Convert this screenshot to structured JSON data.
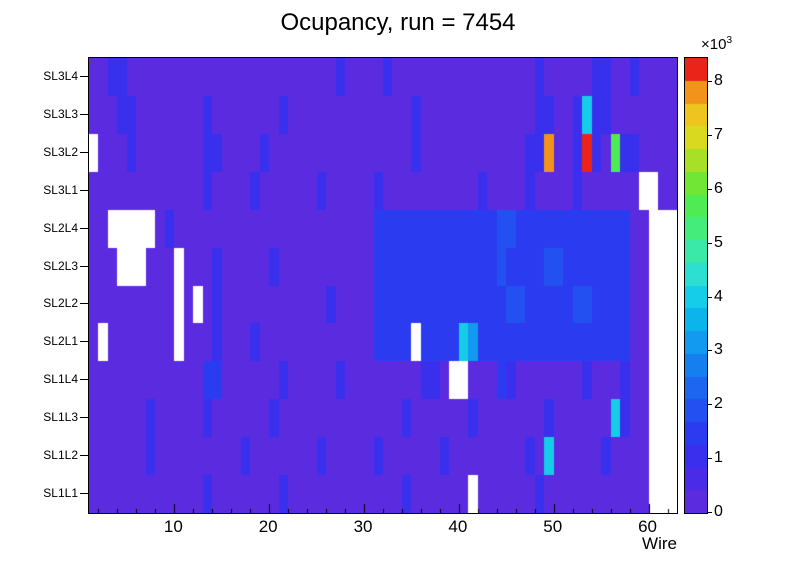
{
  "title": "Ocupancy, run = 7454",
  "axes": {
    "x_label": "Wire",
    "x_ticks": [
      10,
      20,
      30,
      40,
      50,
      60
    ],
    "y_labels_top_to_bottom": [
      "SL3L4",
      "SL3L3",
      "SL3L2",
      "SL3L1",
      "SL2L4",
      "SL2L3",
      "SL2L2",
      "SL2L1",
      "SL1L4",
      "SL1L3",
      "SL1L2",
      "SL1L1"
    ],
    "z_ticks": [
      0,
      1,
      2,
      3,
      4,
      5,
      6,
      7,
      8
    ],
    "z_scale": {
      "mantissa": "×10",
      "exponent": "3"
    }
  },
  "chart_data": {
    "type": "heatmap",
    "title": "Ocupancy, run = 7454",
    "xlabel": "Wire",
    "x_bin_range": [
      1,
      62
    ],
    "z_unit": "counts ×10^3",
    "z_max": 8.45,
    "empty_bin_color": "#ffffff",
    "palette_low_to_high": [
      "#5b2be0",
      "#4a2be8",
      "#3930ee",
      "#2b3cf0",
      "#2350f0",
      "#1c66f0",
      "#167ff0",
      "#119af0",
      "#0cb4ec",
      "#15cde8",
      "#2ddfd0",
      "#3ae8a8",
      "#44ec7c",
      "#4eec52",
      "#72e635",
      "#a8e028",
      "#d9da20",
      "#eec41e",
      "#f2941c",
      "#ea2418"
    ],
    "rows_top_to_bottom": [
      "SL3L4",
      "SL3L3",
      "SL3L2",
      "SL3L1",
      "SL2L4",
      "SL2L3",
      "SL2L2",
      "SL2L1",
      "SL1L4",
      "SL1L3",
      "SL1L2",
      "SL1L1"
    ],
    "values_top_to_bottom": [
      [
        0.4,
        0.4,
        1,
        1,
        0.4,
        0.4,
        0.4,
        0.4,
        0.4,
        0.4,
        0.4,
        0.4,
        0.4,
        0.4,
        0.4,
        0.4,
        0.4,
        0.4,
        0.4,
        0.4,
        0.4,
        0.4,
        0.4,
        0.4,
        0.4,
        0.4,
        1,
        0.4,
        0.4,
        0.4,
        0.4,
        1,
        0.4,
        0.4,
        0.4,
        0.4,
        0.4,
        0.4,
        0.4,
        0.4,
        0.4,
        0.4,
        0.4,
        0.4,
        0.4,
        0.4,
        0.4,
        1,
        0.4,
        0.4,
        0.4,
        0.4,
        0.4,
        1,
        1,
        0.4,
        0.4,
        1,
        0.4,
        0.4,
        0.4,
        0.4
      ],
      [
        0.4,
        0.4,
        0.4,
        1,
        1,
        0.4,
        0.4,
        0.4,
        0.4,
        0.4,
        0.4,
        0.4,
        1,
        0.4,
        0.4,
        0.4,
        0.4,
        0.4,
        0.4,
        0.4,
        1,
        0.4,
        0.4,
        0.4,
        0.4,
        0.4,
        0.4,
        0.4,
        0.4,
        0.4,
        0.4,
        0.4,
        0.4,
        0.4,
        1,
        0.4,
        0.4,
        0.4,
        0.4,
        0.4,
        0.4,
        0.4,
        0.4,
        0.4,
        0.4,
        0.4,
        0.4,
        1,
        1,
        0.4,
        0.4,
        1,
        4.2,
        1,
        1,
        0.4,
        0.4,
        0.4,
        0.4,
        0.4,
        0.4,
        0.4
      ],
      [
        0,
        0.4,
        0.4,
        0.4,
        1,
        0.4,
        0.4,
        0.4,
        0.4,
        0.4,
        0.4,
        0.4,
        1,
        1,
        0.4,
        0.4,
        0.4,
        0.4,
        1,
        0.4,
        0.4,
        0.4,
        0.4,
        0.4,
        0.4,
        0.4,
        0.4,
        0.4,
        0.4,
        0.4,
        0.4,
        0.4,
        0.4,
        0.4,
        1,
        0.4,
        0.4,
        0.4,
        0.4,
        0.4,
        0.4,
        0.4,
        0.4,
        0.4,
        0.4,
        0.4,
        1,
        1,
        8,
        0.4,
        0.4,
        1,
        8.4,
        1,
        0.4,
        5.8,
        1,
        1,
        0.4,
        0.4,
        0.4,
        0.4
      ],
      [
        0.4,
        0.4,
        0.4,
        0.4,
        0.4,
        0.4,
        0.4,
        0.4,
        0.4,
        0.4,
        0.4,
        0.4,
        1,
        0.4,
        0.4,
        0.4,
        0.4,
        1,
        0.4,
        0.4,
        0.4,
        0.4,
        0.4,
        0.4,
        1,
        0.4,
        0.4,
        0.4,
        0.4,
        0.4,
        1,
        0.4,
        0.4,
        0.4,
        0.4,
        0.4,
        0.4,
        0.4,
        0.4,
        0.4,
        0.4,
        1,
        0.4,
        0.4,
        0.4,
        0.4,
        1,
        0.4,
        0.4,
        0.4,
        0.4,
        1,
        0.4,
        0.4,
        0.4,
        0.4,
        0.4,
        0.4,
        0,
        0,
        0.4,
        0.4
      ],
      [
        0.4,
        0.4,
        0,
        0,
        0,
        0,
        0,
        0.4,
        1,
        0.4,
        0.4,
        0.4,
        0.4,
        0.4,
        0.4,
        0.4,
        0.4,
        0.4,
        0.4,
        0.4,
        0.4,
        0.4,
        0.4,
        0.4,
        0.4,
        0.4,
        0.4,
        0.4,
        0.4,
        0.4,
        1.5,
        1.5,
        1.5,
        1.5,
        1.5,
        1.5,
        1.5,
        1.5,
        1.5,
        1.5,
        1.5,
        1.5,
        1.5,
        1.9,
        1.9,
        1.5,
        1.5,
        1.5,
        1.5,
        1.5,
        1.5,
        1.5,
        1.5,
        1.5,
        1.5,
        1.5,
        1.5,
        0.4,
        0.4,
        0,
        0,
        0
      ],
      [
        0.4,
        0.4,
        0.4,
        0,
        0,
        0,
        0.4,
        0.4,
        0.4,
        0,
        0.4,
        0.4,
        0.4,
        1,
        0.4,
        0.4,
        0.4,
        0.4,
        0.4,
        1,
        0.4,
        0.4,
        0.4,
        0.4,
        0.4,
        0.4,
        0.4,
        0.4,
        0.4,
        0.4,
        1.5,
        1.5,
        1.5,
        1.5,
        1.5,
        1.5,
        1.5,
        1.5,
        1.5,
        1.5,
        1.5,
        1.5,
        1.5,
        1.9,
        1.5,
        1.5,
        1.5,
        1.5,
        1.9,
        1.9,
        1.5,
        1.5,
        1.5,
        1.5,
        1.5,
        1.5,
        1.5,
        0.4,
        0.4,
        0,
        0,
        0
      ],
      [
        0.4,
        0.4,
        0.4,
        0.4,
        0.4,
        0.4,
        0.4,
        0.4,
        0.4,
        0,
        0.4,
        0,
        0.4,
        1,
        0.4,
        0.4,
        0.4,
        0.4,
        0.4,
        0.4,
        0.4,
        0.4,
        0.4,
        0.4,
        0.4,
        1,
        0.4,
        0.4,
        0.4,
        0.4,
        1.5,
        1.5,
        1.5,
        1.5,
        1.5,
        1.5,
        1.5,
        1.5,
        1.5,
        1.5,
        1.5,
        1.5,
        1.5,
        1.5,
        1.9,
        1.9,
        1.5,
        1.5,
        1.5,
        1.5,
        1.5,
        1.9,
        1.9,
        1.5,
        1.5,
        1.5,
        1.5,
        0.4,
        0.4,
        0,
        0,
        0
      ],
      [
        0.4,
        0,
        0.4,
        0.4,
        0.4,
        0.4,
        0.4,
        0.4,
        0.4,
        0,
        0.4,
        0.4,
        0.4,
        1,
        0.4,
        0.4,
        0.4,
        1,
        0.4,
        0.4,
        0.4,
        0.4,
        0.4,
        0.4,
        0.4,
        0.4,
        0.4,
        0.4,
        0.4,
        0.4,
        1.5,
        1.5,
        1.5,
        1.5,
        0,
        1.5,
        1.5,
        1.5,
        1.5,
        4.2,
        3,
        1.5,
        1.5,
        1.5,
        1.5,
        1.5,
        1.5,
        1.5,
        1.5,
        1.5,
        1.5,
        1.5,
        1.5,
        1.5,
        1.5,
        1.5,
        1.5,
        0.4,
        0.4,
        0,
        0,
        0
      ],
      [
        0.4,
        0.4,
        0.4,
        0.4,
        0.4,
        0.4,
        0.4,
        0.4,
        0.4,
        0.4,
        0.4,
        0.4,
        1.4,
        1.4,
        0.4,
        0.4,
        0.4,
        0.4,
        0.4,
        0.4,
        1,
        0.4,
        0.4,
        0.4,
        0.4,
        0.4,
        1,
        0.4,
        0.4,
        0.4,
        0.4,
        0.4,
        0.4,
        0.4,
        0.4,
        1,
        1,
        0.4,
        0,
        0,
        0.4,
        0.4,
        0.4,
        1.4,
        1,
        0.4,
        0.4,
        0.4,
        0.4,
        0.4,
        0.4,
        0.4,
        1,
        0.4,
        0.4,
        0.4,
        1,
        0.4,
        0.4,
        0,
        0,
        0
      ],
      [
        0.4,
        0.4,
        0.4,
        0.4,
        0.4,
        0.4,
        1,
        0.4,
        0.4,
        0.4,
        0.4,
        0.4,
        1,
        0.4,
        0.4,
        0.4,
        0.4,
        0.4,
        0.4,
        1,
        0.4,
        0.4,
        0.4,
        0.4,
        0.4,
        0.4,
        0.4,
        0.4,
        0.4,
        0.4,
        0.4,
        0.4,
        0.4,
        1,
        0.4,
        0.4,
        0.4,
        0.4,
        0.4,
        0.4,
        1,
        0.4,
        0.4,
        0.4,
        0.4,
        0.4,
        0.4,
        0.4,
        1,
        0.4,
        0.4,
        0.4,
        0.4,
        0.4,
        0.4,
        4.2,
        1,
        0.4,
        0.4,
        0,
        0,
        0
      ],
      [
        0.4,
        0.4,
        0.4,
        0.4,
        0.4,
        0.4,
        1,
        0.4,
        0.4,
        0.4,
        0.4,
        0.4,
        0.4,
        0.4,
        0.4,
        0.4,
        1,
        0.4,
        0.4,
        0.4,
        0.4,
        0.4,
        0.4,
        0.4,
        1,
        0.4,
        0.4,
        0.4,
        0.4,
        0.4,
        1,
        0.4,
        0.4,
        0.4,
        0.4,
        0.4,
        0.4,
        1,
        0.4,
        0.4,
        0.4,
        0.4,
        0.4,
        0.4,
        0.4,
        0.4,
        1,
        0.4,
        4.2,
        0.4,
        0.4,
        0.4,
        0.4,
        0.4,
        1,
        0.4,
        0.4,
        0.4,
        0.4,
        0,
        0,
        0
      ],
      [
        0.4,
        0.4,
        0.4,
        0.4,
        0.4,
        0.4,
        0.4,
        0.4,
        0.4,
        0.4,
        0.4,
        0.4,
        1,
        0.4,
        0.4,
        0.4,
        0.4,
        0.4,
        0.4,
        0.4,
        1,
        0.4,
        0.4,
        0.4,
        0.4,
        0.4,
        0.4,
        0.4,
        0.4,
        0.4,
        0.4,
        0.4,
        0.4,
        1,
        0.4,
        0.4,
        0.4,
        0.4,
        0.4,
        0.4,
        0,
        0.4,
        0.4,
        0.4,
        0.4,
        0.4,
        0.4,
        1,
        0.4,
        0.4,
        0.4,
        0.4,
        0.4,
        0.4,
        0.4,
        0.4,
        0.4,
        0.4,
        0.4,
        0,
        0,
        0
      ]
    ]
  }
}
